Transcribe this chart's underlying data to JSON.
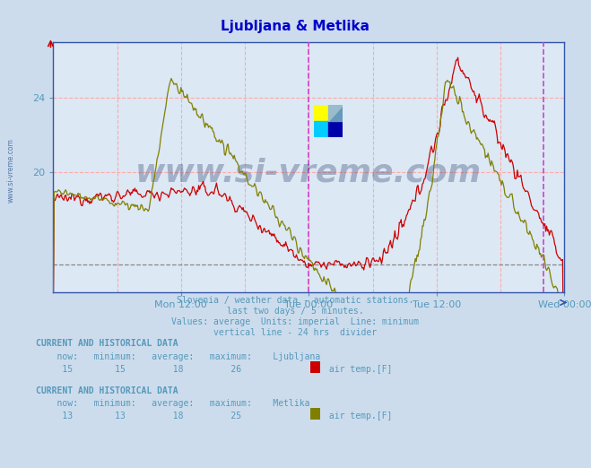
{
  "title": "Ljubljana & Metlika",
  "title_color": "#0000cc",
  "bg_color": "#ccdcec",
  "plot_bg_color": "#dce8f4",
  "xlabel_ticks": [
    "Mon 12:00",
    "Tue 00:00",
    "Tue 12:00",
    "Wed 00:00"
  ],
  "ylim_min": 13.5,
  "ylim_max": 27.0,
  "y_tick_vals": [
    20,
    24
  ],
  "y_min_line": 15.0,
  "subtitle_lines": [
    "Slovenia / weather data - automatic stations.",
    "last two days / 5 minutes.",
    "Values: average  Units: imperial  Line: minimum",
    "vertical line - 24 hrs  divider"
  ],
  "info_color": "#5599bb",
  "grid_color": "#ffaaaa",
  "line_color_lj": "#cc0000",
  "line_color_mt": "#808000",
  "watermark_color": "#1a3060",
  "lj_now": 15,
  "lj_min": 15,
  "lj_avg": 18,
  "lj_max": 26,
  "mt_now": 13,
  "mt_min": 13,
  "mt_avg": 18,
  "mt_max": 25,
  "tick_color": "#5599bb",
  "axis_color": "#3355aa",
  "N": 576,
  "xtick_positions": [
    144,
    288,
    432,
    576
  ],
  "vline_24hr": 288,
  "vline_last": 552
}
